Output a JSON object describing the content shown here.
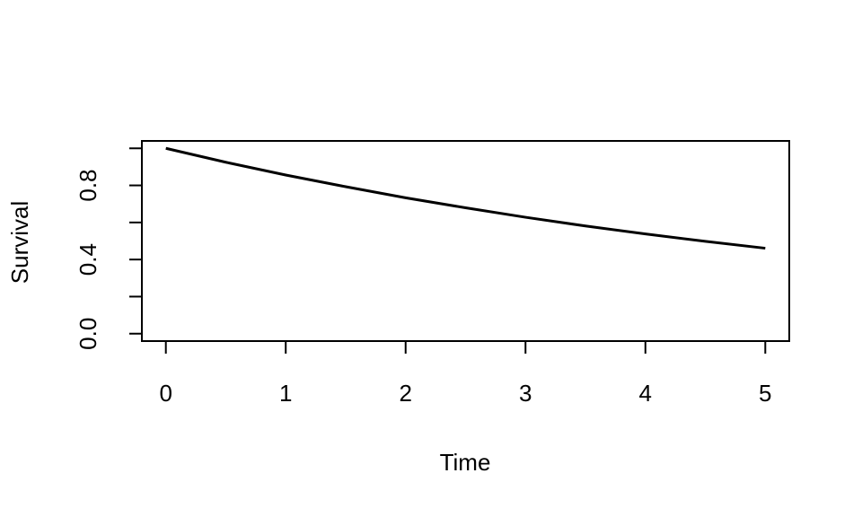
{
  "chart_data": {
    "type": "line",
    "x_label": "Time",
    "y_label": "Survival",
    "x": [
      0,
      0.5,
      1,
      1.5,
      2,
      2.5,
      3,
      3.5,
      4,
      4.5,
      5
    ],
    "series": [
      {
        "color": "#000000",
        "values": [
          1,
          0.925,
          0.856,
          0.793,
          0.733,
          0.679,
          0.628,
          0.581,
          0.538,
          0.498,
          0.461
        ]
      }
    ],
    "xlim": [
      -0.2,
      5.2
    ],
    "xticks": [
      0,
      1,
      2,
      3,
      4,
      5
    ],
    "ylim": [
      -0.04,
      1.04
    ],
    "yticks": [
      {
        "value": 0,
        "label": "0.0"
      },
      0.4,
      0.8
    ],
    "yminorticks": [
      0.2,
      0.6,
      1.0
    ]
  }
}
